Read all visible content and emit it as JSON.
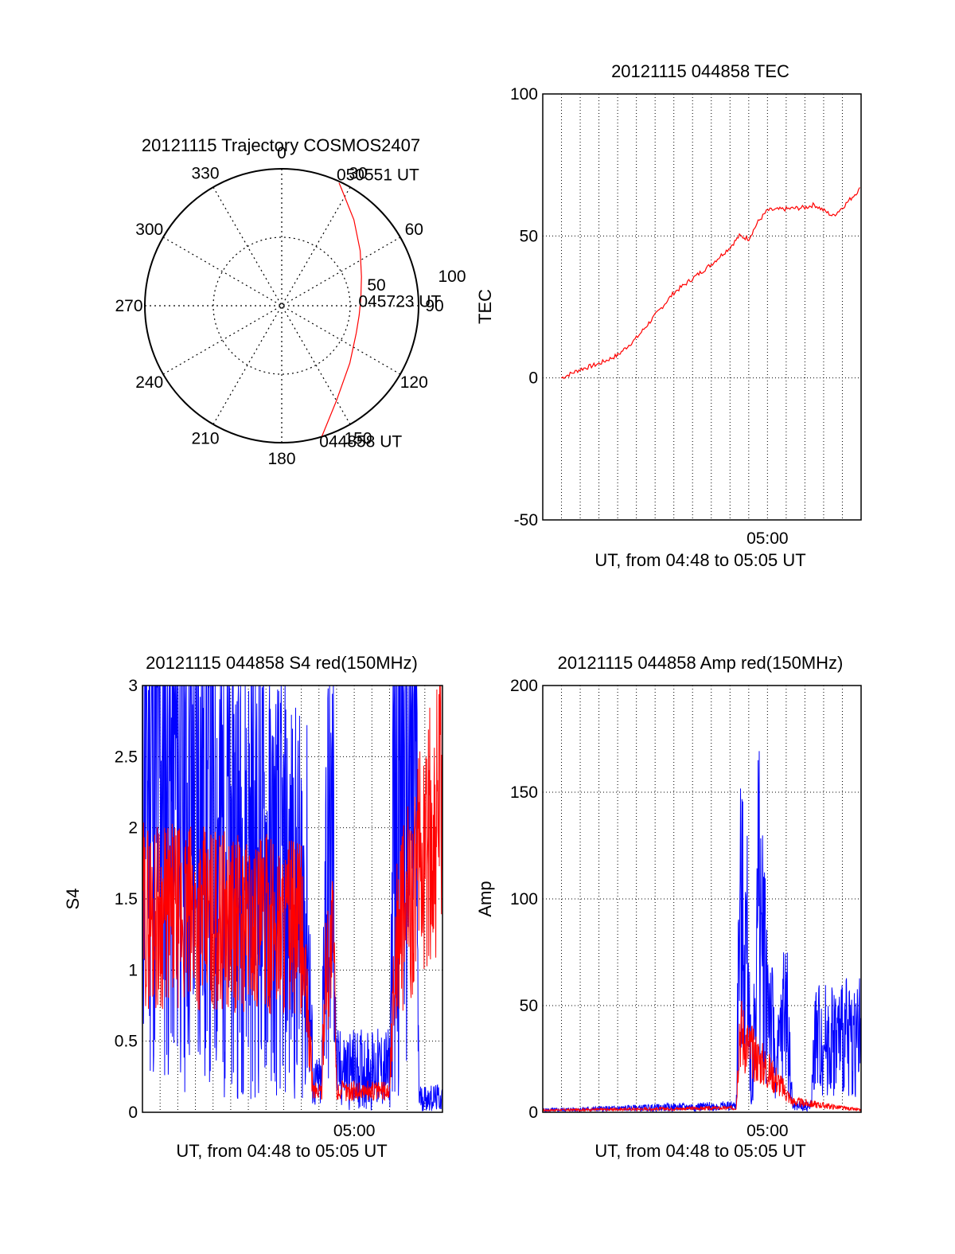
{
  "colors": {
    "red": "#ff0000",
    "blue": "#0000ff",
    "black": "#000000",
    "grid": "#000000"
  },
  "chart_data": [
    {
      "type": "polar",
      "title": "20121115 Trajectory COSMOS2407",
      "azimuth_labels": [
        "0",
        "30",
        "60",
        "90",
        "120",
        "150",
        "180",
        "210",
        "240",
        "270",
        "300",
        "330"
      ],
      "radial_labels": [
        "50",
        "100"
      ],
      "start_label": "044858 UT",
      "mid_label": "045723 UT",
      "end_label": "050551 UT",
      "trajectory": [
        {
          "az": 163,
          "r": 100
        },
        {
          "az": 150,
          "r": 80
        },
        {
          "az": 130,
          "r": 65
        },
        {
          "az": 110,
          "r": 58
        },
        {
          "az": 97,
          "r": 57
        },
        {
          "az": 85,
          "r": 58
        },
        {
          "az": 70,
          "r": 62
        },
        {
          "az": 55,
          "r": 70
        },
        {
          "az": 40,
          "r": 82
        },
        {
          "az": 27,
          "r": 96
        },
        {
          "az": 25,
          "r": 99
        }
      ]
    },
    {
      "type": "line",
      "title": "20121115 044858 TEC",
      "ylabel": "TEC",
      "xlabel": "UT, from 04:48 to 05:05 UT",
      "xticks": [
        "05:00"
      ],
      "ylim": [
        -50,
        100
      ],
      "yticks": [
        "-50",
        "0",
        "50",
        "100"
      ],
      "series": [
        {
          "color": "red",
          "points": [
            [
              "04:49:00",
              0
            ],
            [
              "04:50:00",
              3
            ],
            [
              "04:51:00",
              5
            ],
            [
              "04:52:00",
              8
            ],
            [
              "04:53:00",
              14
            ],
            [
              "04:54:00",
              22
            ],
            [
              "04:55:00",
              30
            ],
            [
              "04:56:00",
              35
            ],
            [
              "04:57:00",
              40
            ],
            [
              "04:58:00",
              46
            ],
            [
              "04:58:30",
              50
            ],
            [
              "04:59:00",
              49
            ],
            [
              "04:59:30",
              55
            ],
            [
              "05:00:00",
              59
            ],
            [
              "05:02:00",
              60
            ],
            [
              "05:02:30",
              61
            ],
            [
              "05:03:30",
              57
            ],
            [
              "05:04:00",
              60
            ],
            [
              "05:05:00",
              67
            ]
          ]
        }
      ]
    },
    {
      "type": "line",
      "title": "20121115 044858 S4 red(150MHz)",
      "ylabel": "S4",
      "xlabel": "UT, from 04:48 to 05:05 UT",
      "xticks": [
        "05:00"
      ],
      "ylim": [
        0,
        3
      ],
      "yticks": [
        "0",
        "0.5",
        "1",
        "1.5",
        "2",
        "2.5",
        "3"
      ],
      "series": [
        {
          "color": "blue",
          "profile": [
            [
              "04:48:00",
              2.6
            ],
            [
              "04:57:20",
              1.4
            ],
            [
              "04:57:40",
              0.2
            ],
            [
              "04:58:10",
              0.2
            ],
            [
              "04:58:20",
              1.6
            ],
            [
              "04:58:50",
              1.8
            ],
            [
              "04:59:00",
              0.3
            ],
            [
              "05:02:00",
              0.3
            ],
            [
              "05:02:20",
              2.5
            ],
            [
              "05:03:30",
              2.6
            ],
            [
              "05:03:40",
              0.1
            ],
            [
              "05:05:00",
              0.1
            ]
          ]
        },
        {
          "color": "red",
          "profile": [
            [
              "04:48:00",
              1.4
            ],
            [
              "04:57:00",
              1.3
            ],
            [
              "04:57:40",
              0.15
            ],
            [
              "04:58:10",
              0.15
            ],
            [
              "04:58:20",
              1.0
            ],
            [
              "04:58:50",
              1.2
            ],
            [
              "04:59:00",
              0.15
            ],
            [
              "05:02:00",
              0.15
            ],
            [
              "05:02:20",
              1.2
            ],
            [
              "05:05:00",
              2.2
            ]
          ]
        }
      ]
    },
    {
      "type": "line",
      "title": "20121115 044858 Amp red(150MHz)",
      "ylabel": "Amp",
      "xlabel": "UT, from 04:48 to 05:05 UT",
      "xticks": [
        "05:00"
      ],
      "ylim": [
        0,
        200
      ],
      "yticks": [
        "0",
        "50",
        "100",
        "150",
        "200"
      ],
      "series": [
        {
          "color": "blue",
          "profile": [
            [
              "04:48:00",
              1
            ],
            [
              "04:58:20",
              3
            ],
            [
              "04:58:30",
              90
            ],
            [
              "04:59:00",
              70
            ],
            [
              "04:59:10",
              3
            ],
            [
              "04:59:30",
              100
            ],
            [
              "05:00:00",
              60
            ],
            [
              "05:00:30",
              20
            ],
            [
              "05:01:00",
              55
            ],
            [
              "05:01:20",
              3
            ],
            [
              "05:02:20",
              3
            ],
            [
              "05:02:30",
              35
            ],
            [
              "05:05:00",
              35
            ]
          ]
        },
        {
          "color": "red",
          "profile": [
            [
              "04:48:00",
              1
            ],
            [
              "04:58:20",
              2
            ],
            [
              "04:58:30",
              40
            ],
            [
              "04:59:00",
              30
            ],
            [
              "04:59:30",
              25
            ],
            [
              "05:00:30",
              15
            ],
            [
              "05:01:20",
              5
            ],
            [
              "05:05:00",
              1
            ]
          ]
        }
      ]
    }
  ]
}
